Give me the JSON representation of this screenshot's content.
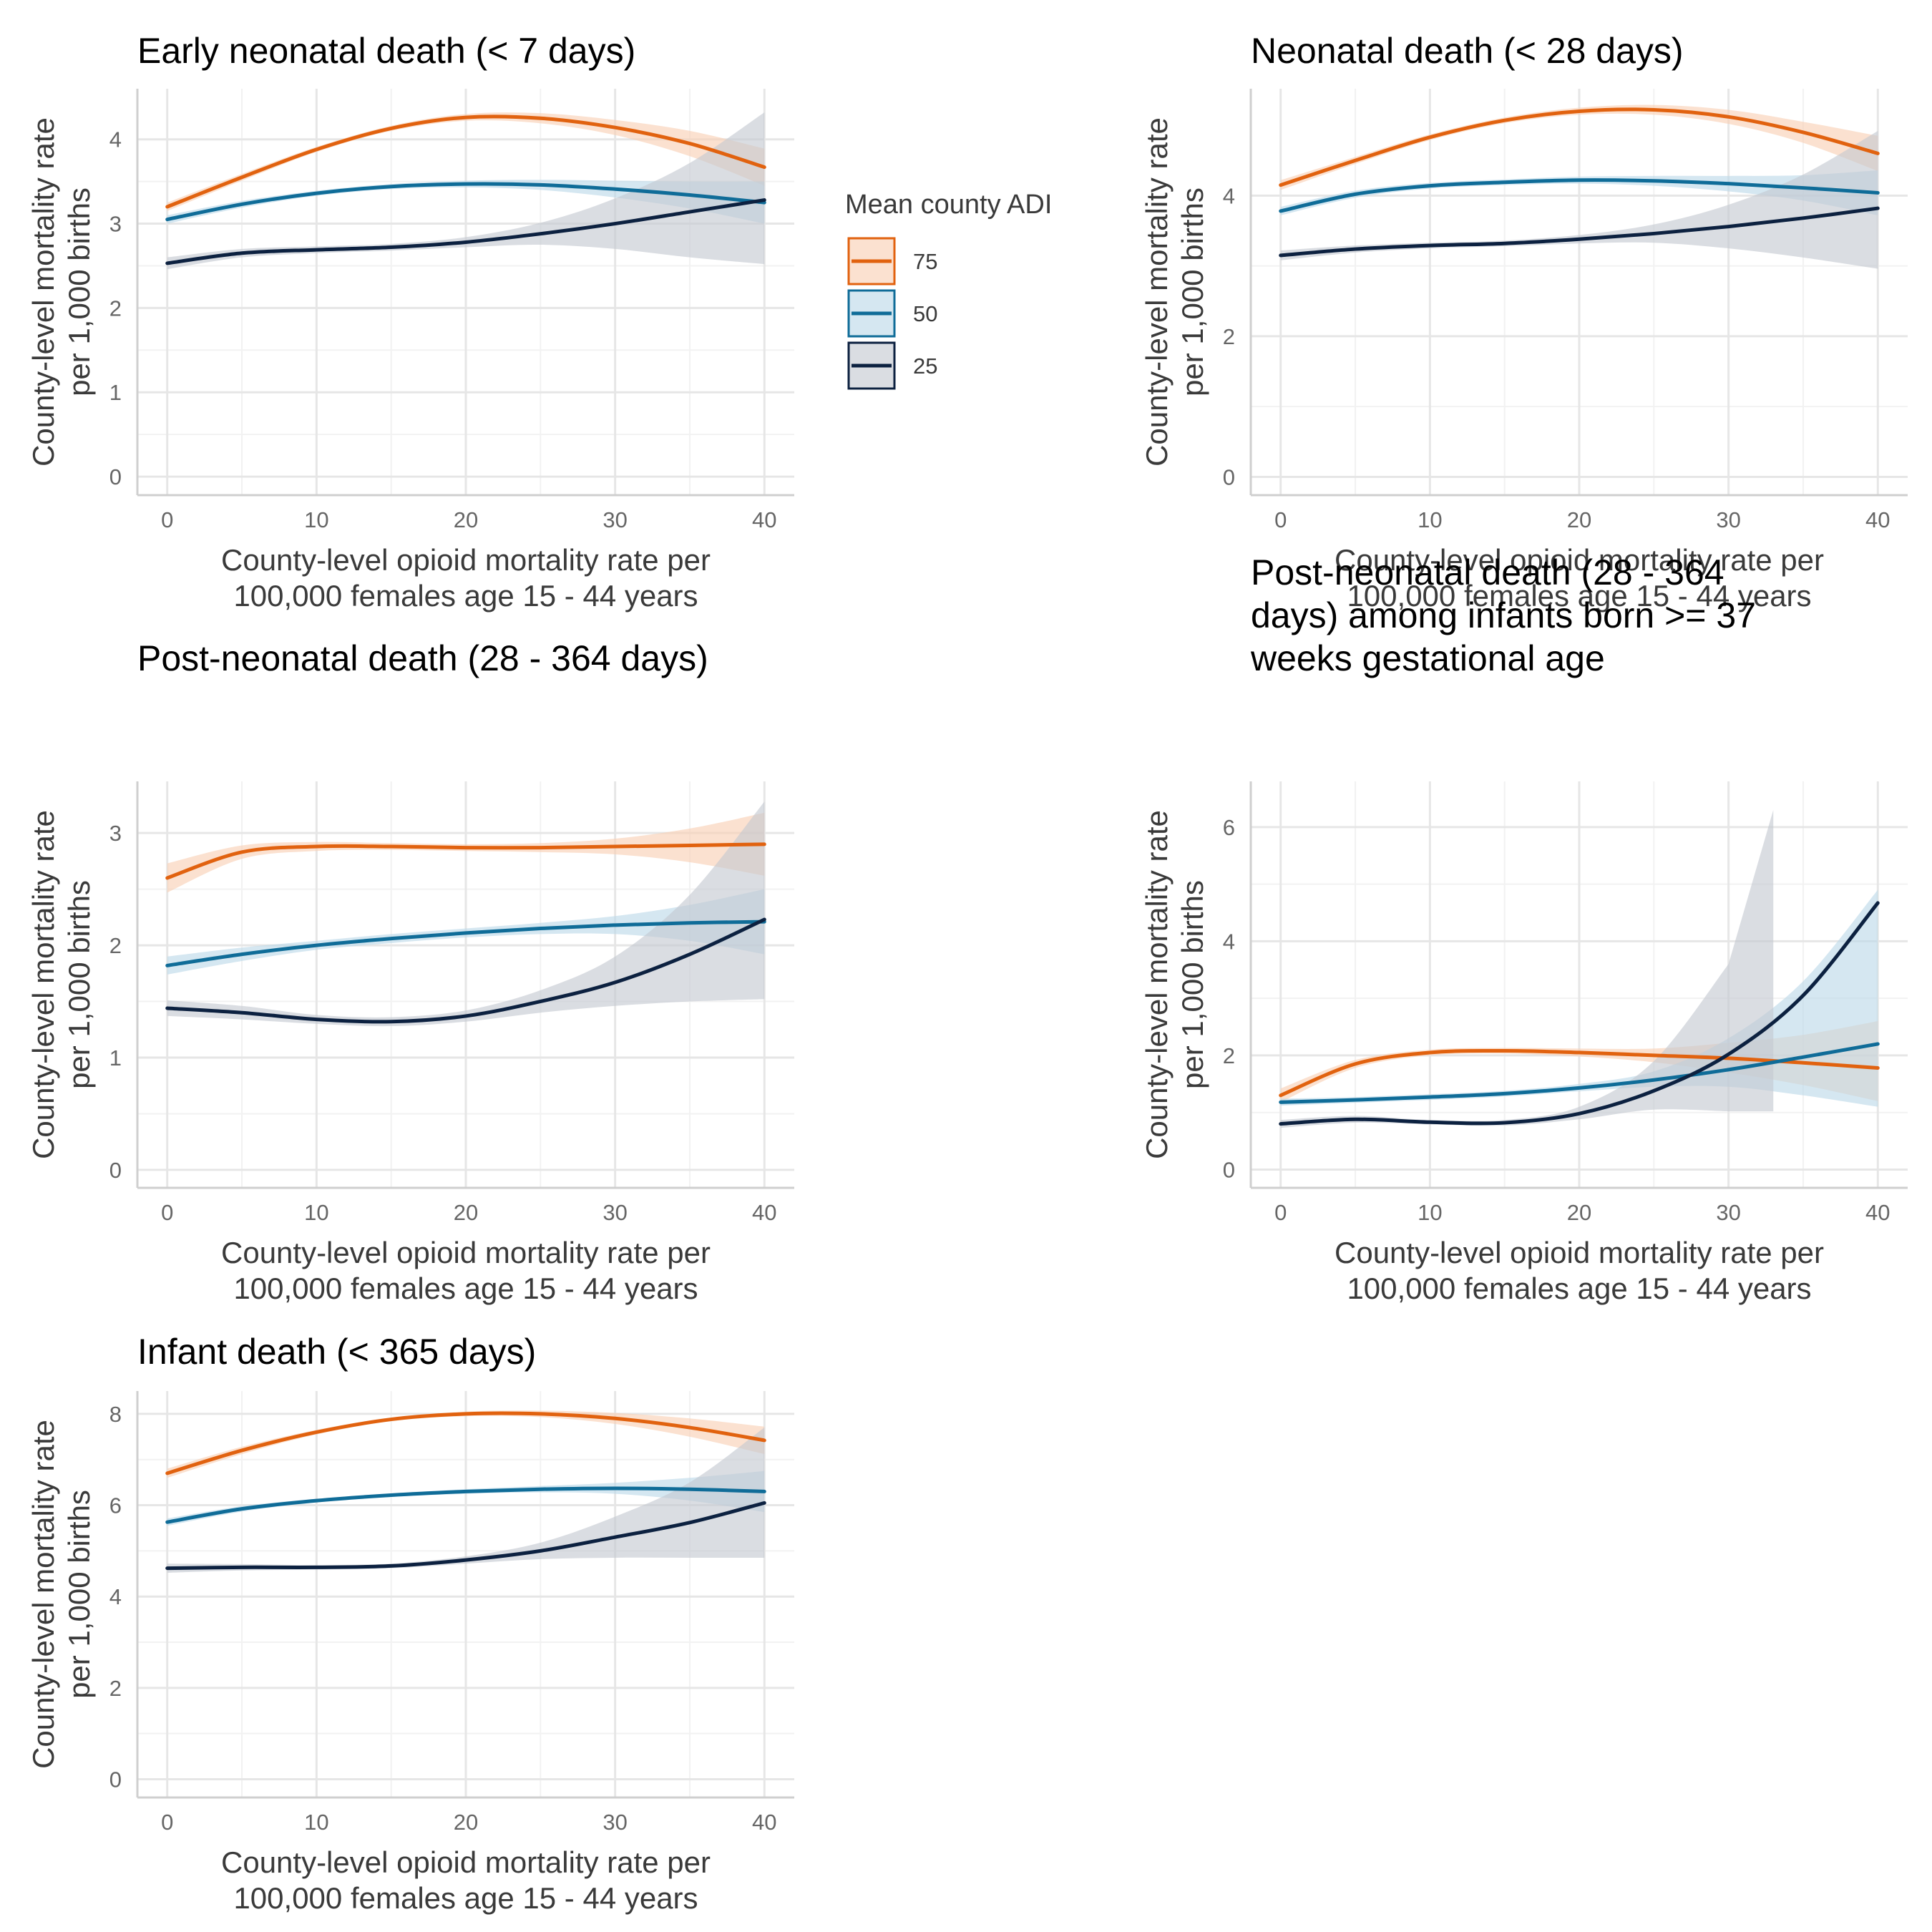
{
  "colors": {
    "adi_75": "#E1620F",
    "adi_50": "#0F6C98",
    "adi_25": "#0C2140",
    "ribbon_75": "#F9CFB3",
    "ribbon_50": "#BBD9E8",
    "ribbon_25": "#C3C8D1",
    "grid_major": "#E6E6E6",
    "grid_minor": "#F2F2F2",
    "axis_line": "#CFCFCF"
  },
  "legend": {
    "title": "Mean county ADI",
    "items": [
      {
        "label": "75",
        "color_key": "adi_75",
        "ribbon_key": "ribbon_75"
      },
      {
        "label": "50",
        "color_key": "adi_50",
        "ribbon_key": "ribbon_50"
      },
      {
        "label": "25",
        "color_key": "adi_25",
        "ribbon_key": "ribbon_25"
      }
    ]
  },
  "chart_data": [
    {
      "type": "line",
      "title_lines": [
        "Early neonatal death (< 7 days)"
      ],
      "ylabel_lines": [
        "County-level mortality rate",
        "per 1,000 births"
      ],
      "xlabel_lines": [
        "County-level opioid mortality rate per",
        "100,000 females age 15 - 44 years"
      ],
      "xlim": [
        -2,
        42
      ],
      "ylim": [
        -0.22,
        4.6
      ],
      "xticks": [
        0,
        10,
        20,
        30,
        40
      ],
      "yticks": [
        0,
        1,
        2,
        3,
        4
      ],
      "grid": true,
      "series": [
        {
          "name": "75",
          "x": [
            0,
            5,
            10,
            15,
            20,
            25,
            30,
            35,
            40
          ],
          "y": [
            3.2,
            3.55,
            3.88,
            4.13,
            4.26,
            4.25,
            4.14,
            3.95,
            3.67
          ],
          "lower": [
            3.15,
            3.51,
            3.85,
            4.1,
            4.22,
            4.19,
            4.05,
            3.8,
            3.45
          ],
          "upper": [
            3.25,
            3.59,
            3.91,
            4.16,
            4.3,
            4.31,
            4.23,
            4.1,
            3.89
          ]
        },
        {
          "name": "50",
          "x": [
            0,
            5,
            10,
            15,
            20,
            25,
            30,
            35,
            40
          ],
          "y": [
            3.05,
            3.23,
            3.36,
            3.44,
            3.47,
            3.46,
            3.41,
            3.34,
            3.25
          ],
          "lower": [
            3.0,
            3.19,
            3.33,
            3.41,
            3.43,
            3.4,
            3.31,
            3.18,
            3.0
          ],
          "upper": [
            3.1,
            3.27,
            3.39,
            3.47,
            3.51,
            3.52,
            3.51,
            3.5,
            3.5
          ]
        },
        {
          "name": "25",
          "x": [
            0,
            5,
            10,
            15,
            20,
            25,
            30,
            35,
            40
          ],
          "y": [
            2.53,
            2.65,
            2.69,
            2.72,
            2.78,
            2.88,
            3.0,
            3.14,
            3.28
          ],
          "lower": [
            2.46,
            2.6,
            2.65,
            2.68,
            2.72,
            2.75,
            2.7,
            2.6,
            2.52
          ],
          "upper": [
            2.6,
            2.7,
            2.73,
            2.76,
            2.84,
            3.01,
            3.3,
            3.72,
            4.32
          ]
        }
      ]
    },
    {
      "type": "line",
      "title_lines": [
        "Neonatal death (< 28 days)"
      ],
      "ylabel_lines": [
        "County-level mortality rate",
        "per 1,000 births"
      ],
      "xlabel_lines": [
        "County-level opioid mortality rate per",
        "100,000 females age 15 - 44 years"
      ],
      "xlim": [
        -2,
        42
      ],
      "ylim": [
        -0.26,
        5.52
      ],
      "xticks": [
        0,
        10,
        20,
        30,
        40
      ],
      "yticks": [
        0,
        2,
        4
      ],
      "grid": true,
      "series": [
        {
          "name": "75",
          "x": [
            0,
            5,
            10,
            15,
            20,
            25,
            30,
            35,
            40
          ],
          "y": [
            4.15,
            4.5,
            4.83,
            5.07,
            5.2,
            5.22,
            5.12,
            4.9,
            4.6
          ],
          "lower": [
            4.08,
            4.45,
            4.79,
            5.03,
            5.15,
            5.15,
            5.02,
            4.75,
            4.35
          ],
          "upper": [
            4.22,
            4.55,
            4.87,
            5.11,
            5.25,
            5.29,
            5.22,
            5.05,
            4.85
          ]
        },
        {
          "name": "50",
          "x": [
            0,
            5,
            10,
            15,
            20,
            25,
            30,
            35,
            40
          ],
          "y": [
            3.78,
            4.02,
            4.14,
            4.19,
            4.22,
            4.21,
            4.17,
            4.11,
            4.04
          ],
          "lower": [
            3.72,
            3.97,
            4.1,
            4.15,
            4.17,
            4.14,
            4.06,
            3.93,
            3.72
          ],
          "upper": [
            3.84,
            4.07,
            4.18,
            4.23,
            4.27,
            4.28,
            4.28,
            4.29,
            4.36
          ]
        },
        {
          "name": "25",
          "x": [
            0,
            5,
            10,
            15,
            20,
            25,
            30,
            35,
            40
          ],
          "y": [
            3.15,
            3.24,
            3.29,
            3.32,
            3.38,
            3.46,
            3.56,
            3.68,
            3.82
          ],
          "lower": [
            3.08,
            3.19,
            3.25,
            3.28,
            3.32,
            3.33,
            3.25,
            3.12,
            2.96
          ],
          "upper": [
            3.22,
            3.29,
            3.33,
            3.36,
            3.44,
            3.59,
            3.87,
            4.3,
            4.92
          ]
        }
      ]
    },
    {
      "type": "line",
      "title_lines": [
        "Post-neonatal death (28 - 364 days)"
      ],
      "ylabel_lines": [
        "County-level mortality rate",
        "per 1,000 births"
      ],
      "xlabel_lines": [
        "County-level opioid mortality rate per",
        "100,000 females age 15 - 44 years"
      ],
      "xlim": [
        -2,
        42
      ],
      "ylim": [
        -0.16,
        3.46
      ],
      "xticks": [
        0,
        10,
        20,
        30,
        40
      ],
      "yticks": [
        0,
        1,
        2,
        3
      ],
      "grid": true,
      "series": [
        {
          "name": "75",
          "x": [
            0,
            5,
            10,
            15,
            20,
            25,
            30,
            35,
            40
          ],
          "y": [
            2.6,
            2.83,
            2.88,
            2.88,
            2.87,
            2.87,
            2.88,
            2.89,
            2.9
          ],
          "lower": [
            2.47,
            2.77,
            2.84,
            2.85,
            2.84,
            2.83,
            2.81,
            2.74,
            2.62
          ],
          "upper": [
            2.73,
            2.89,
            2.92,
            2.91,
            2.9,
            2.91,
            2.95,
            3.04,
            3.18
          ]
        },
        {
          "name": "50",
          "x": [
            0,
            5,
            10,
            15,
            20,
            25,
            30,
            35,
            40
          ],
          "y": [
            1.82,
            1.92,
            2.0,
            2.06,
            2.11,
            2.15,
            2.18,
            2.2,
            2.21
          ],
          "lower": [
            1.74,
            1.86,
            1.96,
            2.02,
            2.07,
            2.1,
            2.1,
            2.04,
            1.92
          ],
          "upper": [
            1.9,
            1.98,
            2.04,
            2.1,
            2.15,
            2.2,
            2.26,
            2.36,
            2.5
          ]
        },
        {
          "name": "25",
          "x": [
            0,
            5,
            10,
            15,
            20,
            25,
            30,
            35,
            40
          ],
          "y": [
            1.44,
            1.4,
            1.34,
            1.32,
            1.37,
            1.5,
            1.67,
            1.92,
            2.23
          ],
          "lower": [
            1.37,
            1.34,
            1.3,
            1.28,
            1.32,
            1.4,
            1.46,
            1.5,
            1.52
          ],
          "upper": [
            1.51,
            1.46,
            1.38,
            1.36,
            1.42,
            1.6,
            1.9,
            2.45,
            3.28
          ]
        }
      ]
    },
    {
      "type": "line",
      "title_lines": [
        "Post-neonatal death (28 - 364",
        "days) among infants born >= 37",
        "weeks gestational age"
      ],
      "ylabel_lines": [
        "County-level mortality rate",
        "per 1,000 births"
      ],
      "xlabel_lines": [
        "County-level opioid mortality rate per",
        "100,000 females age 15 - 44 years"
      ],
      "xlim": [
        -2,
        42
      ],
      "ylim": [
        -0.32,
        6.8
      ],
      "xticks": [
        0,
        10,
        20,
        30,
        40
      ],
      "yticks": [
        0,
        2,
        4,
        6
      ],
      "grid": true,
      "series": [
        {
          "name": "75",
          "x": [
            0,
            5,
            10,
            15,
            20,
            25,
            30,
            35,
            40
          ],
          "y": [
            1.3,
            1.85,
            2.05,
            2.08,
            2.05,
            2.0,
            1.95,
            1.87,
            1.78
          ],
          "lower": [
            1.18,
            1.78,
            2.0,
            2.03,
            1.98,
            1.88,
            1.7,
            1.48,
            1.2
          ],
          "upper": [
            1.42,
            1.92,
            2.1,
            2.13,
            2.12,
            2.12,
            2.22,
            2.36,
            2.6
          ]
        },
        {
          "name": "50",
          "x": [
            0,
            5,
            10,
            15,
            20,
            25,
            30,
            35,
            40
          ],
          "y": [
            1.18,
            1.22,
            1.27,
            1.33,
            1.43,
            1.57,
            1.75,
            1.97,
            2.2
          ],
          "lower": [
            1.12,
            1.17,
            1.22,
            1.28,
            1.37,
            1.45,
            1.45,
            1.3,
            1.1
          ],
          "upper": [
            1.24,
            1.27,
            1.32,
            1.38,
            1.5,
            1.72,
            2.3,
            3.3,
            4.9
          ]
        },
        {
          "name": "25",
          "x": [
            0,
            5,
            10,
            15,
            20,
            25,
            30,
            35,
            40
          ],
          "y": [
            0.8,
            0.88,
            0.83,
            0.82,
            0.98,
            1.38,
            2.02,
            3.05,
            4.67
          ],
          "lower": [
            0.73,
            0.82,
            0.79,
            0.77,
            0.88,
            1.05,
            1.02,
            null,
            null
          ],
          "upper": [
            0.87,
            0.94,
            0.87,
            0.87,
            1.1,
            1.9,
            3.6,
            null,
            null
          ],
          "band_x": [
            0,
            5,
            10,
            15,
            20,
            25,
            30,
            33
          ],
          "band_lower": [
            0.73,
            0.82,
            0.79,
            0.77,
            0.88,
            1.05,
            1.02,
            1.02
          ],
          "band_upper": [
            0.87,
            0.94,
            0.87,
            0.87,
            1.1,
            1.9,
            3.6,
            6.3
          ]
        }
      ]
    },
    {
      "type": "line",
      "title_lines": [
        "Infant death (< 365 days)"
      ],
      "ylabel_lines": [
        "County-level mortality rate",
        "per 1,000 births"
      ],
      "xlabel_lines": [
        "County-level opioid mortality rate per",
        "100,000 females age 15 - 44 years"
      ],
      "xlim": [
        -2,
        42
      ],
      "ylim": [
        -0.4,
        8.5
      ],
      "xticks": [
        0,
        10,
        20,
        30,
        40
      ],
      "yticks": [
        0,
        2,
        4,
        6,
        8
      ],
      "grid": true,
      "series": [
        {
          "name": "75",
          "x": [
            0,
            5,
            10,
            15,
            20,
            25,
            30,
            35,
            40
          ],
          "y": [
            6.7,
            7.2,
            7.6,
            7.88,
            8.0,
            8.0,
            7.9,
            7.7,
            7.42
          ],
          "lower": [
            6.6,
            7.12,
            7.55,
            7.84,
            7.95,
            7.93,
            7.78,
            7.5,
            7.12
          ],
          "upper": [
            6.8,
            7.28,
            7.65,
            7.92,
            8.05,
            8.07,
            8.02,
            7.9,
            7.72
          ]
        },
        {
          "name": "50",
          "x": [
            0,
            5,
            10,
            15,
            20,
            25,
            30,
            35,
            40
          ],
          "y": [
            5.63,
            5.92,
            6.1,
            6.22,
            6.3,
            6.35,
            6.37,
            6.35,
            6.3
          ],
          "lower": [
            5.55,
            5.86,
            6.06,
            6.18,
            6.25,
            6.28,
            6.25,
            6.1,
            5.85
          ],
          "upper": [
            5.71,
            5.98,
            6.14,
            6.26,
            6.35,
            6.42,
            6.49,
            6.6,
            6.75
          ]
        },
        {
          "name": "25",
          "x": [
            0,
            5,
            10,
            15,
            20,
            25,
            30,
            35,
            40
          ],
          "y": [
            4.62,
            4.64,
            4.64,
            4.67,
            4.8,
            5.0,
            5.3,
            5.62,
            6.05
          ],
          "lower": [
            4.52,
            4.57,
            4.59,
            4.62,
            4.72,
            4.82,
            4.85,
            4.85,
            4.85
          ],
          "upper": [
            4.72,
            4.71,
            4.69,
            4.72,
            4.88,
            5.18,
            5.75,
            6.5,
            7.7
          ]
        }
      ]
    }
  ]
}
